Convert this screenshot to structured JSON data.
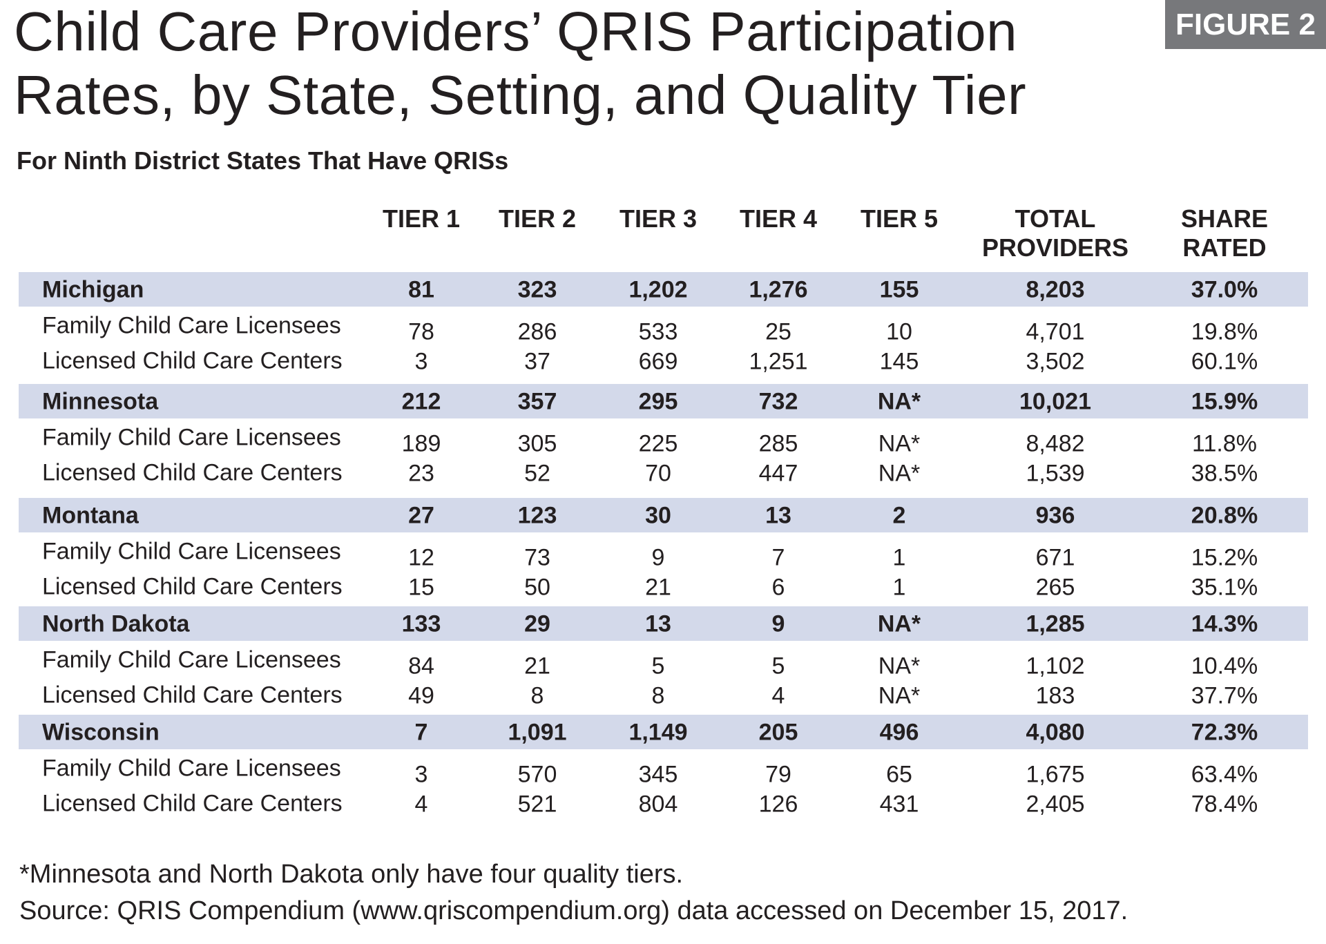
{
  "title_line1": "Child Care Providers’ QRIS Participation",
  "title_line2": "Rates, by State, Setting, and Quality Tier",
  "figure_label": "FIGURE 2",
  "subtitle": "For Ninth District States That Have QRISs",
  "columns": [
    "TIER 1",
    "TIER 2",
    "TIER 3",
    "TIER 4",
    "TIER 5",
    "TOTAL PROVIDERS",
    "SHARE RATED"
  ],
  "columns_lines": [
    [
      "TIER 1"
    ],
    [
      "TIER 2"
    ],
    [
      "TIER 3"
    ],
    [
      "TIER 4"
    ],
    [
      "TIER 5"
    ],
    [
      "TOTAL",
      "PROVIDERS"
    ],
    [
      "SHARE",
      "RATED"
    ]
  ],
  "band_color": "#d3d9ea",
  "states": [
    {
      "name": "Michigan",
      "values": [
        "81",
        "323",
        "1,202",
        "1,276",
        "155",
        "8,203",
        "37.0%"
      ],
      "rows": [
        {
          "label": "Family Child Care Licensees",
          "values": [
            "78",
            "286",
            "533",
            "25",
            "10",
            "4,701",
            "19.8%"
          ]
        },
        {
          "label": "Licensed Child Care Centers",
          "values": [
            "3",
            "37",
            "669",
            "1,251",
            "145",
            "3,502",
            "60.1%"
          ]
        }
      ]
    },
    {
      "name": "Minnesota",
      "values": [
        "212",
        "357",
        "295",
        "732",
        "NA*",
        "10,021",
        "15.9%"
      ],
      "rows": [
        {
          "label": "Family Child Care Licensees",
          "values": [
            "189",
            "305",
            "225",
            "285",
            "NA*",
            "8,482",
            "11.8%"
          ]
        },
        {
          "label": "Licensed Child Care Centers",
          "values": [
            "23",
            "52",
            "70",
            "447",
            "NA*",
            "1,539",
            "38.5%"
          ]
        }
      ]
    },
    {
      "name": "Montana",
      "values": [
        "27",
        "123",
        "30",
        "13",
        "2",
        "936",
        "20.8%"
      ],
      "rows": [
        {
          "label": "Family Child Care Licensees",
          "values": [
            "12",
            "73",
            "9",
            "7",
            "1",
            "671",
            "15.2%"
          ]
        },
        {
          "label": "Licensed Child Care Centers",
          "values": [
            "15",
            "50",
            "21",
            "6",
            "1",
            "265",
            "35.1%"
          ]
        }
      ]
    },
    {
      "name": "North Dakota",
      "values": [
        "133",
        "29",
        "13",
        "9",
        "NA*",
        "1,285",
        "14.3%"
      ],
      "rows": [
        {
          "label": "Family Child Care Licensees",
          "values": [
            "84",
            "21",
            "5",
            "5",
            "NA*",
            "1,102",
            "10.4%"
          ]
        },
        {
          "label": "Licensed Child Care Centers",
          "values": [
            "49",
            "8",
            "8",
            "4",
            "NA*",
            "183",
            "37.7%"
          ]
        }
      ]
    },
    {
      "name": "Wisconsin",
      "values": [
        "7",
        "1,091",
        "1,149",
        "205",
        "496",
        "4,080",
        "72.3%"
      ],
      "rows": [
        {
          "label": "Family Child Care Licensees",
          "values": [
            "3",
            "570",
            "345",
            "79",
            "65",
            "1,675",
            "63.4%"
          ]
        },
        {
          "label": "Licensed Child Care Centers",
          "values": [
            "4",
            "521",
            "804",
            "126",
            "431",
            "2,405",
            "78.4%"
          ]
        }
      ]
    }
  ],
  "footnote": "*Minnesota and North Dakota only have four quality tiers.",
  "source": "Source: QRIS Compendium (www.qriscompendium.org) data accessed on December 15, 2017."
}
